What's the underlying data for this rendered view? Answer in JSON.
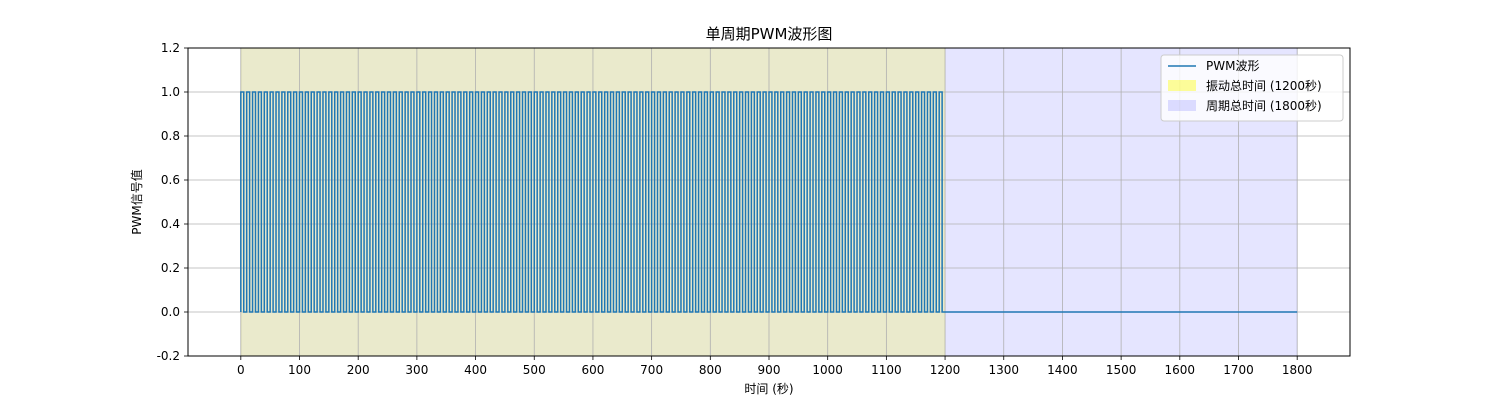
{
  "chart_data": {
    "type": "line",
    "title": "单周期PWM波形图",
    "xlabel": "时间 (秒)",
    "ylabel": "PWM信号值",
    "xlim": [
      -90,
      1890
    ],
    "ylim": [
      -0.2,
      1.2
    ],
    "x_ticks": [
      "0",
      "100",
      "200",
      "300",
      "400",
      "500",
      "600",
      "700",
      "800",
      "900",
      "1000",
      "1100",
      "1200",
      "1300",
      "1400",
      "1500",
      "1600",
      "1700",
      "1800"
    ],
    "y_ticks": [
      "-0.2",
      "0.0",
      "0.2",
      "0.4",
      "0.6",
      "0.8",
      "1.0",
      "1.2"
    ],
    "grid": true,
    "legend_position": "top-right",
    "series": [
      {
        "name": "PWM波形",
        "color": "#1f77b4",
        "pulse_period": 10,
        "duty_cycle": 0.5,
        "high_value": 1.0,
        "low_value": 0.0,
        "active_range": [
          0,
          1200
        ],
        "end": 1800
      }
    ],
    "spans": [
      {
        "name": "振动总时间 (1200秒)",
        "range": [
          0,
          1200
        ],
        "color": "#ffff00",
        "alpha": 0.2
      },
      {
        "name": "周期总时间 (1800秒)",
        "range": [
          0,
          1800
        ],
        "color": "#0000ff",
        "alpha": 0.1
      }
    ]
  }
}
